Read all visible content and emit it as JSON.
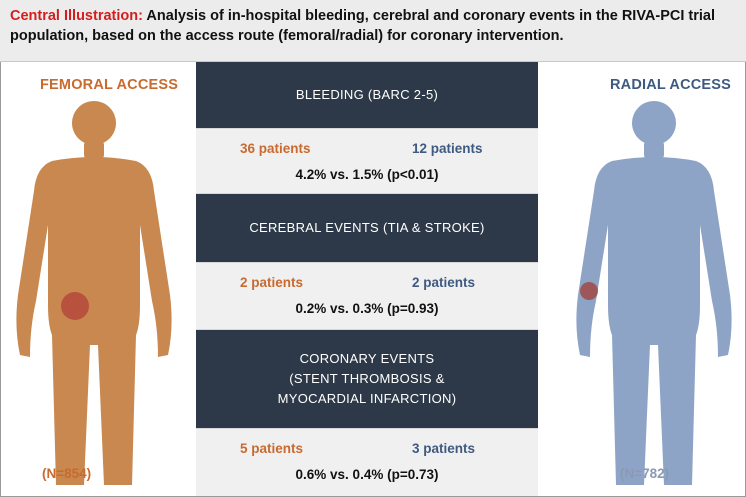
{
  "header": {
    "lead": "Central Illustration:",
    "text": " Analysis of in-hospital bleeding, cerebral and coronary events in the RIVA-PCI trial population, based on the access route (femoral/radial) for coronary intervention."
  },
  "femoral": {
    "title": "FEMORAL ACCESS",
    "n": "(N=854)",
    "color": "#c8884f",
    "marker": "#b5483a",
    "icon": "human-body-icon"
  },
  "radial": {
    "title": "RADIAL ACCESS",
    "n": "(N=782)",
    "color": "#8ea4c6",
    "marker": "#a04a45",
    "icon": "human-body-icon"
  },
  "rows": [
    {
      "title_lines": [
        "BLEEDING (BARC 2-5)"
      ],
      "femoral": "36 patients",
      "radial": "12 patients",
      "stat": "4.2% vs. 1.5% (p<0.01)"
    },
    {
      "title_lines": [
        "CEREBRAL EVENTS (TIA & STROKE)"
      ],
      "femoral": "2 patients",
      "radial": "2 patients",
      "stat": "0.2% vs. 0.3% (p=0.93)"
    },
    {
      "title_lines": [
        "CORONARY EVENTS",
        "(STENT THROMBOSIS &",
        "MYOCARDIAL INFARCTION)"
      ],
      "femoral": "5 patients",
      "radial": "3 patients",
      "stat": "0.6% vs. 0.4% (p=0.73)"
    }
  ]
}
